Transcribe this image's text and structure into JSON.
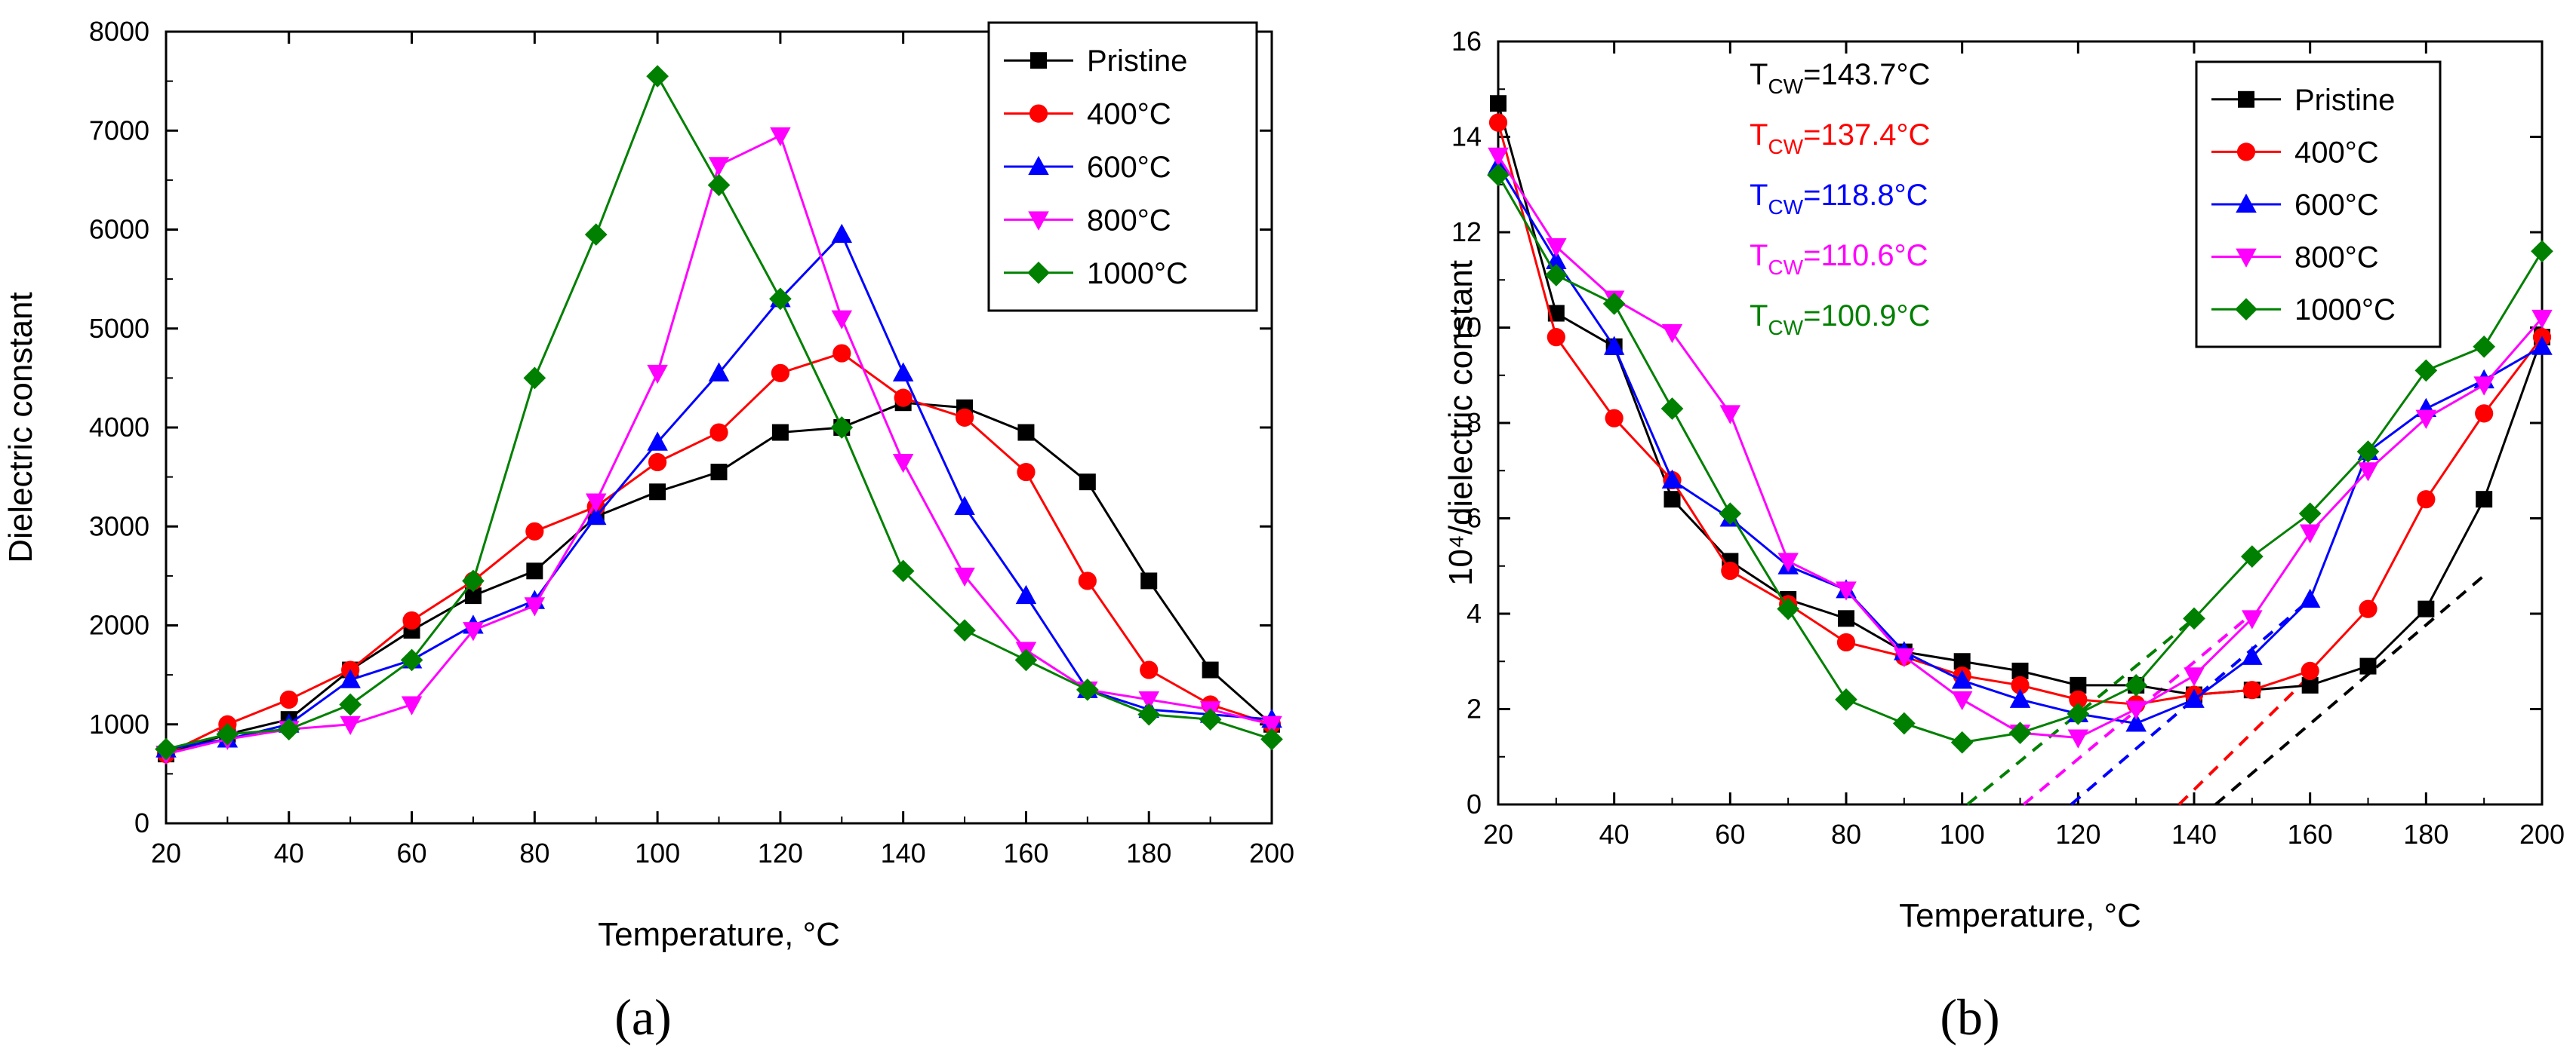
{
  "chart_data": [
    {
      "type": "line",
      "panel_label": "(a)",
      "xlabel": "Temperature, °C",
      "ylabel": "Dielectric constant",
      "xlim": [
        20,
        200
      ],
      "ylim": [
        0,
        8000
      ],
      "xticks": [
        20,
        40,
        60,
        80,
        100,
        120,
        140,
        160,
        180,
        200
      ],
      "yticks": [
        0,
        1000,
        2000,
        3000,
        4000,
        5000,
        6000,
        7000,
        8000
      ],
      "legend_position": "top-right",
      "x": [
        20,
        30,
        40,
        50,
        60,
        70,
        80,
        90,
        100,
        110,
        120,
        130,
        140,
        150,
        160,
        170,
        180,
        190,
        200
      ],
      "series": [
        {
          "name": "Pristine",
          "color": "#000000",
          "marker": "square",
          "values": [
            700,
            900,
            1050,
            1550,
            1950,
            2300,
            2550,
            3100,
            3350,
            3550,
            3950,
            4000,
            4250,
            4200,
            3950,
            3450,
            2450,
            1550,
            1000
          ]
        },
        {
          "name": "400°C",
          "color": "#ff0000",
          "marker": "circle",
          "values": [
            700,
            1000,
            1250,
            1550,
            2050,
            2450,
            2950,
            3200,
            3650,
            3950,
            4550,
            4750,
            4300,
            4100,
            3550,
            2450,
            1550,
            1200,
            1000
          ]
        },
        {
          "name": "600°C",
          "color": "#0000ff",
          "marker": "triangle-up",
          "values": [
            750,
            850,
            1000,
            1450,
            1650,
            2000,
            2250,
            3100,
            3850,
            4550,
            5300,
            5950,
            4550,
            3200,
            2300,
            1350,
            1150,
            1100,
            1050
          ]
        },
        {
          "name": "800°C",
          "color": "#ff00ff",
          "marker": "triangle-down",
          "values": [
            700,
            850,
            950,
            1000,
            1200,
            1950,
            2200,
            3250,
            4550,
            6650,
            6950,
            5100,
            3650,
            2500,
            1750,
            1350,
            1250,
            1150,
            1000
          ]
        },
        {
          "name": "1000°C",
          "color": "#008000",
          "marker": "diamond",
          "values": [
            750,
            900,
            950,
            1200,
            1650,
            2450,
            4500,
            5950,
            7550,
            6450,
            5300,
            4000,
            2550,
            1950,
            1650,
            1350,
            1100,
            1050,
            850
          ]
        }
      ]
    },
    {
      "type": "line",
      "panel_label": "(b)",
      "xlabel": "Temperature, °C",
      "ylabel": "10⁴/dielectric constant",
      "xlim": [
        20,
        200
      ],
      "ylim": [
        0,
        16
      ],
      "xticks": [
        20,
        40,
        60,
        80,
        100,
        120,
        140,
        160,
        180,
        200
      ],
      "yticks": [
        0,
        2,
        4,
        6,
        8,
        10,
        12,
        14,
        16
      ],
      "legend_position": "top-right",
      "x": [
        20,
        30,
        40,
        50,
        60,
        70,
        80,
        90,
        100,
        110,
        120,
        130,
        140,
        150,
        160,
        170,
        180,
        190,
        200
      ],
      "annotations": [
        {
          "prefix": "T",
          "subscript": "CW",
          "text": "=143.7°C",
          "color": "#000000"
        },
        {
          "prefix": "T",
          "subscript": "CW",
          "text": "=137.4°C",
          "color": "#ff0000"
        },
        {
          "prefix": "T",
          "subscript": "CW",
          "text": "=118.8°C",
          "color": "#0000ff"
        },
        {
          "prefix": "T",
          "subscript": "CW",
          "text": "=110.6°C",
          "color": "#ff00ff"
        },
        {
          "prefix": "T",
          "subscript": "CW",
          "text": "=100.9°C",
          "color": "#008000"
        }
      ],
      "curie_weiss_fits": [
        {
          "series": "Pristine",
          "color": "#000000",
          "x": [
            143.7,
            190
          ],
          "y": [
            0,
            4.8
          ]
        },
        {
          "series": "400°C",
          "color": "#ff0000",
          "x": [
            137.4,
            160
          ],
          "y": [
            0,
            2.7
          ]
        },
        {
          "series": "600°C",
          "color": "#0000ff",
          "x": [
            118.8,
            160
          ],
          "y": [
            0,
            4.3
          ]
        },
        {
          "series": "800°C",
          "color": "#ff00ff",
          "x": [
            110.6,
            150
          ],
          "y": [
            0,
            4.0
          ]
        },
        {
          "series": "1000°C",
          "color": "#008000",
          "x": [
            100.9,
            140
          ],
          "y": [
            0,
            3.9
          ]
        }
      ],
      "series": [
        {
          "name": "Pristine",
          "color": "#000000",
          "marker": "square",
          "values": [
            14.7,
            10.3,
            9.6,
            6.4,
            5.1,
            4.3,
            3.9,
            3.2,
            3.0,
            2.8,
            2.5,
            2.5,
            2.3,
            2.4,
            2.5,
            2.9,
            4.1,
            6.4,
            9.8
          ]
        },
        {
          "name": "400°C",
          "color": "#ff0000",
          "marker": "circle",
          "values": [
            14.3,
            9.8,
            8.1,
            6.8,
            4.9,
            4.2,
            3.4,
            3.1,
            2.7,
            2.5,
            2.2,
            2.1,
            2.3,
            2.4,
            2.8,
            4.1,
            6.4,
            8.2,
            9.8
          ]
        },
        {
          "name": "600°C",
          "color": "#0000ff",
          "marker": "triangle-up",
          "values": [
            13.4,
            11.4,
            9.6,
            6.8,
            6.0,
            5.0,
            4.5,
            3.2,
            2.6,
            2.2,
            1.9,
            1.7,
            2.2,
            3.1,
            4.3,
            7.4,
            8.3,
            8.9,
            9.6
          ]
        },
        {
          "name": "800°C",
          "color": "#ff00ff",
          "marker": "triangle-down",
          "values": [
            13.6,
            11.7,
            10.6,
            9.9,
            8.2,
            5.1,
            4.5,
            3.1,
            2.2,
            1.5,
            1.4,
            2.0,
            2.7,
            3.9,
            5.7,
            7.0,
            8.1,
            8.8,
            10.2
          ]
        },
        {
          "name": "1000°C",
          "color": "#008000",
          "marker": "diamond",
          "values": [
            13.2,
            11.1,
            10.5,
            8.3,
            6.1,
            4.1,
            2.2,
            1.7,
            1.3,
            1.5,
            1.9,
            2.5,
            3.9,
            5.2,
            6.1,
            7.4,
            9.1,
            9.6,
            11.6
          ]
        }
      ]
    }
  ]
}
